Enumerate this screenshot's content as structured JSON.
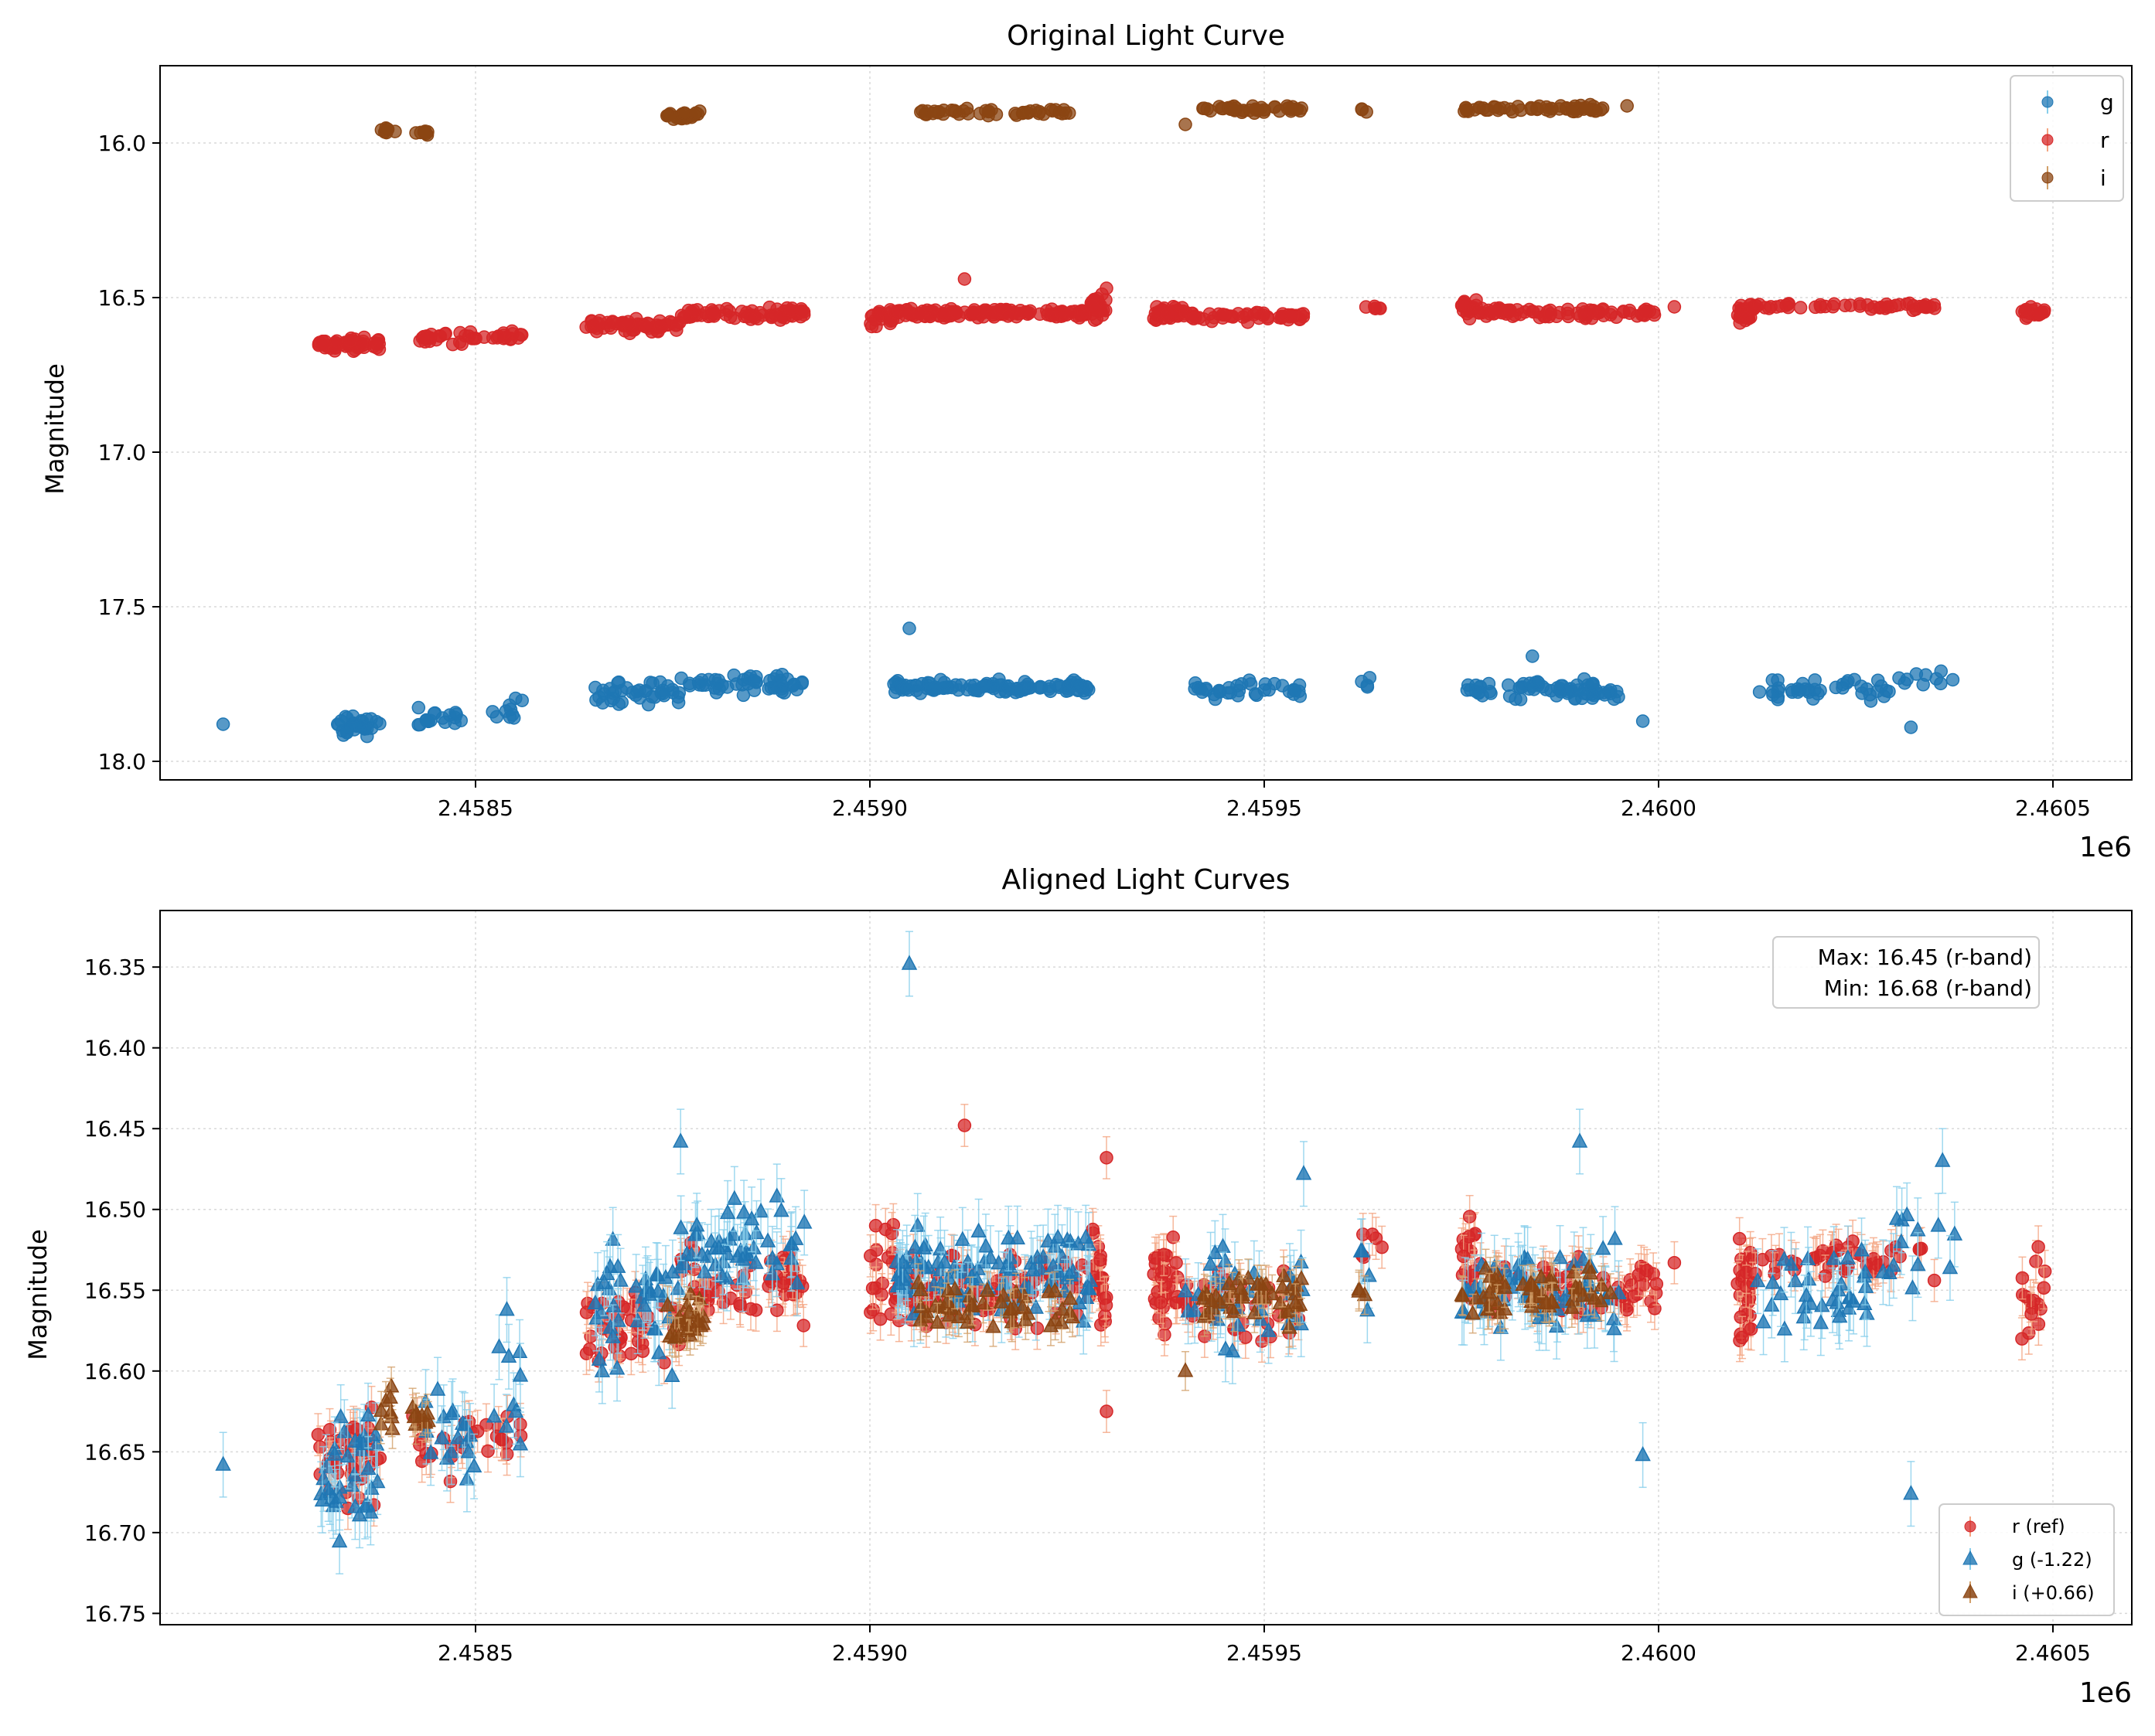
{
  "chart_data": [
    {
      "type": "scatter",
      "title": "Original Light Curve",
      "xlabel": "",
      "ylabel": "Magnitude",
      "x_offset_label": "1e6",
      "xlim": [
        2.4581,
        2.4606
      ],
      "ylim": [
        18.06,
        15.75
      ],
      "y_inverted": true,
      "grid": true,
      "xticks": [
        2.4585,
        2.459,
        2.4595,
        2.46,
        2.4605
      ],
      "xtick_labels": [
        "2.4585",
        "2.4590",
        "2.4595",
        "2.4600",
        "2.4605"
      ],
      "yticks": [
        16.0,
        16.5,
        17.0,
        17.5,
        18.0
      ],
      "ytick_labels": [
        "16.0",
        "16.5",
        "17.0",
        "17.5",
        "18.0"
      ],
      "legend": {
        "position": "top-right",
        "entries": [
          "g",
          "r",
          "i"
        ]
      },
      "series": [
        {
          "name": "g",
          "color": "#1f77b4",
          "marker": "circle",
          "clusters": [
            [
              2.45832,
              2.45838,
              17.88,
              0.035,
              30
            ],
            [
              2.45842,
              2.4585,
              17.86,
              0.03,
              18
            ],
            [
              2.45852,
              2.45856,
              17.83,
              0.04,
              10
            ],
            [
              2.45865,
              2.45876,
              17.78,
              0.035,
              40
            ],
            [
              2.45876,
              2.45892,
              17.75,
              0.03,
              50
            ],
            [
              2.45903,
              2.45928,
              17.76,
              0.02,
              110
            ],
            [
              2.4594,
              2.45955,
              17.77,
              0.025,
              35
            ],
            [
              2.45962,
              2.45964,
              17.75,
              0.03,
              4
            ],
            [
              2.45975,
              2.45995,
              17.77,
              0.03,
              70
            ],
            [
              2.46012,
              2.4603,
              17.77,
              0.03,
              40
            ],
            [
              2.4603,
              2.46038,
              17.74,
              0.03,
              10
            ]
          ],
          "points": [
            [
              2.45818,
              17.88
            ],
            [
              2.45905,
              17.57
            ],
            [
              2.45998,
              17.87
            ],
            [
              2.46032,
              17.89
            ],
            [
              2.45984,
              17.66
            ]
          ]
        },
        {
          "name": "r",
          "color": "#d62728",
          "marker": "circle",
          "clusters": [
            [
              2.4583,
              2.45838,
              16.65,
              0.02,
              55
            ],
            [
              2.45842,
              2.45856,
              16.63,
              0.02,
              40
            ],
            [
              2.45864,
              2.45876,
              16.59,
              0.02,
              60
            ],
            [
              2.45876,
              2.45892,
              16.55,
              0.02,
              70
            ],
            [
              2.459,
              2.45903,
              16.56,
              0.03,
              20
            ],
            [
              2.45903,
              2.45928,
              16.55,
              0.015,
              130
            ],
            [
              2.45928,
              2.4593,
              16.53,
              0.04,
              25
            ],
            [
              2.45936,
              2.4594,
              16.55,
              0.025,
              35
            ],
            [
              2.4594,
              2.45955,
              16.56,
              0.015,
              50
            ],
            [
              2.45962,
              2.45965,
              16.53,
              0.015,
              6
            ],
            [
              2.45975,
              2.45977,
              16.53,
              0.03,
              20
            ],
            [
              2.45977,
              2.46,
              16.55,
              0.015,
              80
            ],
            [
              2.4601,
              2.46012,
              16.55,
              0.03,
              30
            ],
            [
              2.46012,
              2.46035,
              16.53,
              0.012,
              50
            ],
            [
              2.46046,
              2.46049,
              16.55,
              0.025,
              18
            ]
          ],
          "points": [
            [
              2.45912,
              16.44
            ],
            [
              2.4593,
              16.47
            ],
            [
              2.46002,
              16.53
            ]
          ]
        },
        {
          "name": "i",
          "color": "#8B4513",
          "marker": "circle",
          "clusters": [
            [
              2.45838,
              2.4584,
              15.96,
              0.01,
              8
            ],
            [
              2.45842,
              2.45844,
              15.97,
              0.01,
              8
            ],
            [
              2.45874,
              2.45879,
              15.91,
              0.012,
              25
            ],
            [
              2.45906,
              2.45926,
              15.9,
              0.012,
              45
            ],
            [
              2.45942,
              2.45955,
              15.89,
              0.012,
              40
            ],
            [
              2.45962,
              2.45963,
              15.89,
              0.015,
              3
            ],
            [
              2.45975,
              2.45994,
              15.89,
              0.012,
              55
            ]
          ],
          "points": [
            [
              2.4594,
              15.94
            ],
            [
              2.45996,
              15.88
            ]
          ]
        }
      ]
    },
    {
      "type": "scatter",
      "title": "Aligned Light Curves",
      "xlabel": "",
      "ylabel": "Magnitude",
      "x_offset_label": "1e6",
      "xlim": [
        2.4581,
        2.4606
      ],
      "ylim": [
        16.757,
        16.315
      ],
      "y_inverted": true,
      "grid": true,
      "xticks": [
        2.4585,
        2.459,
        2.4595,
        2.46,
        2.4605
      ],
      "xtick_labels": [
        "2.4585",
        "2.4590",
        "2.4595",
        "2.4600",
        "2.4605"
      ],
      "yticks": [
        16.35,
        16.4,
        16.45,
        16.5,
        16.55,
        16.6,
        16.65,
        16.7,
        16.75
      ],
      "ytick_labels": [
        "16.35",
        "16.40",
        "16.45",
        "16.50",
        "16.55",
        "16.60",
        "16.65",
        "16.70",
        "16.75"
      ],
      "annotation": [
        "Max: 16.45 (r-band)",
        "Min: 16.68 (r-band)"
      ],
      "legend": {
        "position": "bottom-right",
        "entries": [
          "r (ref)",
          "g (-1.22)",
          "i (+0.66)"
        ]
      },
      "series": [
        {
          "name": "r (ref)",
          "color": "#d62728",
          "errcolor": "#f4a582",
          "marker": "circle",
          "err": 0.013,
          "clusters": [
            [
              2.4583,
              2.45838,
              16.655,
              0.025,
              45
            ],
            [
              2.45842,
              2.45856,
              16.64,
              0.025,
              30
            ],
            [
              2.45864,
              2.45876,
              16.575,
              0.025,
              45
            ],
            [
              2.45876,
              2.45892,
              16.545,
              0.022,
              55
            ],
            [
              2.459,
              2.45903,
              16.54,
              0.035,
              18
            ],
            [
              2.45903,
              2.45928,
              16.55,
              0.02,
              110
            ],
            [
              2.45928,
              2.4593,
              16.54,
              0.04,
              22
            ],
            [
              2.45936,
              2.4594,
              16.55,
              0.025,
              35
            ],
            [
              2.4594,
              2.45955,
              16.56,
              0.02,
              45
            ],
            [
              2.45962,
              2.45965,
              16.53,
              0.02,
              6
            ],
            [
              2.45975,
              2.45977,
              16.535,
              0.03,
              18
            ],
            [
              2.45977,
              2.46,
              16.55,
              0.018,
              70
            ],
            [
              2.4601,
              2.46012,
              16.55,
              0.03,
              30
            ],
            [
              2.46012,
              2.46035,
              16.53,
              0.015,
              45
            ],
            [
              2.46046,
              2.46049,
              16.55,
              0.025,
              16
            ]
          ],
          "points": [
            [
              2.45912,
              16.448
            ],
            [
              2.4593,
              16.468
            ],
            [
              2.46002,
              16.533
            ],
            [
              2.4593,
              16.625
            ]
          ]
        },
        {
          "name": "g (-1.22)",
          "color": "#1f77b4",
          "errcolor": "#87ceeb",
          "marker": "triangle",
          "err": 0.02,
          "clusters": [
            [
              2.4583,
              2.45838,
              16.66,
              0.035,
              35
            ],
            [
              2.45842,
              2.4585,
              16.64,
              0.03,
              18
            ],
            [
              2.45852,
              2.45856,
              16.61,
              0.05,
              10
            ],
            [
              2.45865,
              2.45876,
              16.56,
              0.035,
              40
            ],
            [
              2.45876,
              2.45892,
              16.52,
              0.03,
              50
            ],
            [
              2.45903,
              2.45928,
              16.54,
              0.025,
              100
            ],
            [
              2.4594,
              2.45955,
              16.555,
              0.03,
              35
            ],
            [
              2.45962,
              2.45964,
              16.53,
              0.035,
              4
            ],
            [
              2.45975,
              2.45995,
              16.55,
              0.03,
              60
            ],
            [
              2.46012,
              2.4603,
              16.55,
              0.03,
              38
            ],
            [
              2.4603,
              2.46038,
              16.52,
              0.03,
              10
            ]
          ],
          "points": [
            [
              2.45818,
              16.658
            ],
            [
              2.45905,
              16.348
            ],
            [
              2.45998,
              16.652
            ],
            [
              2.46032,
              16.676
            ],
            [
              2.4599,
              16.458
            ],
            [
              2.45876,
              16.458
            ],
            [
              2.45955,
              16.478
            ],
            [
              2.46036,
              16.47
            ]
          ]
        },
        {
          "name": "i (+0.66)",
          "color": "#8B4513",
          "errcolor": "#d2a06a",
          "marker": "triangle",
          "err": 0.012,
          "clusters": [
            [
              2.45838,
              2.4584,
              16.625,
              0.012,
              8
            ],
            [
              2.45842,
              2.45844,
              16.63,
              0.012,
              8
            ],
            [
              2.45874,
              2.45879,
              16.57,
              0.015,
              25
            ],
            [
              2.45906,
              2.45926,
              16.56,
              0.015,
              45
            ],
            [
              2.45942,
              2.45955,
              16.555,
              0.015,
              40
            ],
            [
              2.45962,
              2.45963,
              16.55,
              0.015,
              3
            ],
            [
              2.45975,
              2.45994,
              16.55,
              0.015,
              55
            ]
          ],
          "points": [
            [
              2.4594,
              16.6
            ]
          ]
        }
      ]
    }
  ]
}
